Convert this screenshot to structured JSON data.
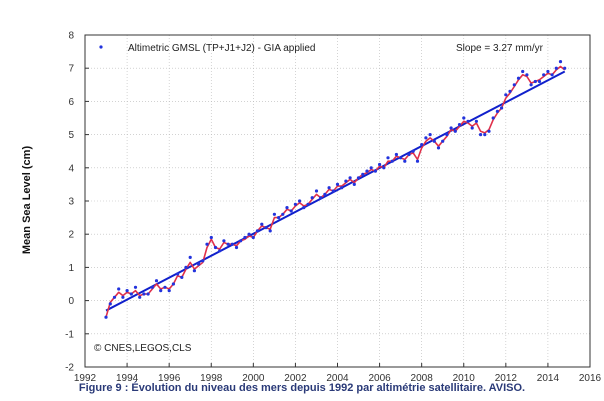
{
  "caption": "Figure 9 : Évolution du niveau des mers depuis 1992 par altimétrie satellitaire. AVISO.",
  "chart_data": {
    "type": "scatter",
    "title": "",
    "xlabel": "",
    "ylabel": "Mean Sea Level (cm)",
    "xlim": [
      1992,
      2016
    ],
    "ylim": [
      -2,
      8
    ],
    "xticks": [
      1992,
      1994,
      1996,
      1998,
      2000,
      2002,
      2004,
      2006,
      2008,
      2010,
      2012,
      2014,
      2016
    ],
    "yticks": [
      -2,
      -1,
      0,
      1,
      2,
      3,
      4,
      5,
      6,
      7,
      8
    ],
    "grid": true,
    "legend": {
      "position": "top-left",
      "label": "Altimetric GMSL (TP+J1+J2) - GIA applied"
    },
    "slope_label": "Slope = 3.27 mm/yr",
    "credit": "© CNES,LEGOS,CLS",
    "colors": {
      "points": "#2233dd",
      "smooth": "#e0304a",
      "trend": "#1020cc"
    },
    "series": [
      {
        "name": "Altimetric GMSL (TP+J1+J2) - GIA applied",
        "style": "points",
        "x": [
          1993.0,
          1993.2,
          1993.4,
          1993.6,
          1993.8,
          1994.0,
          1994.2,
          1994.4,
          1994.6,
          1994.8,
          1995.0,
          1995.2,
          1995.4,
          1995.6,
          1995.8,
          1996.0,
          1996.2,
          1996.4,
          1996.6,
          1996.8,
          1997.0,
          1997.2,
          1997.4,
          1997.6,
          1997.8,
          1998.0,
          1998.2,
          1998.4,
          1998.6,
          1998.8,
          1999.0,
          1999.2,
          1999.4,
          1999.6,
          1999.8,
          2000.0,
          2000.2,
          2000.4,
          2000.6,
          2000.8,
          2001.0,
          2001.2,
          2001.4,
          2001.6,
          2001.8,
          2002.0,
          2002.2,
          2002.4,
          2002.6,
          2002.8,
          2003.0,
          2003.2,
          2003.4,
          2003.6,
          2003.8,
          2004.0,
          2004.2,
          2004.4,
          2004.6,
          2004.8,
          2005.0,
          2005.2,
          2005.4,
          2005.6,
          2005.8,
          2006.0,
          2006.2,
          2006.4,
          2006.6,
          2006.8,
          2007.0,
          2007.2,
          2007.4,
          2007.6,
          2007.8,
          2008.0,
          2008.2,
          2008.4,
          2008.6,
          2008.8,
          2009.0,
          2009.2,
          2009.4,
          2009.6,
          2009.8,
          2010.0,
          2010.2,
          2010.4,
          2010.6,
          2010.8,
          2011.0,
          2011.2,
          2011.4,
          2011.6,
          2011.8,
          2012.0,
          2012.2,
          2012.4,
          2012.6,
          2012.8,
          2013.0,
          2013.2,
          2013.4,
          2013.6,
          2013.8,
          2014.0,
          2014.2,
          2014.4,
          2014.6,
          2014.8
        ],
        "values": [
          -0.5,
          -0.1,
          0.1,
          0.35,
          0.1,
          0.3,
          0.2,
          0.4,
          0.1,
          0.2,
          0.2,
          0.4,
          0.6,
          0.3,
          0.4,
          0.3,
          0.5,
          0.8,
          0.7,
          1.0,
          1.3,
          0.9,
          1.1,
          1.2,
          1.7,
          1.9,
          1.6,
          1.5,
          1.8,
          1.7,
          1.7,
          1.6,
          1.8,
          1.9,
          2.0,
          1.9,
          2.1,
          2.3,
          2.2,
          2.1,
          2.6,
          2.5,
          2.6,
          2.8,
          2.7,
          2.9,
          3.0,
          2.8,
          2.9,
          3.1,
          3.3,
          3.1,
          3.2,
          3.4,
          3.3,
          3.5,
          3.4,
          3.6,
          3.7,
          3.5,
          3.7,
          3.8,
          3.9,
          4.0,
          3.9,
          4.1,
          4.0,
          4.3,
          4.2,
          4.4,
          4.3,
          4.2,
          4.4,
          4.5,
          4.2,
          4.7,
          4.9,
          5.0,
          4.8,
          4.6,
          4.8,
          5.0,
          5.2,
          5.1,
          5.3,
          5.5,
          5.4,
          5.2,
          5.4,
          5.0,
          5.0,
          5.1,
          5.5,
          5.7,
          5.8,
          6.2,
          6.3,
          6.5,
          6.7,
          6.9,
          6.8,
          6.5,
          6.6,
          6.6,
          6.8,
          6.9,
          6.8,
          7.0,
          7.2,
          7.0
        ]
      },
      {
        "name": "",
        "style": "smoothed-line",
        "x": [
          1993.0,
          1993.2,
          1993.4,
          1993.6,
          1993.8,
          1994.0,
          1994.2,
          1994.4,
          1994.6,
          1994.8,
          1995.0,
          1995.2,
          1995.4,
          1995.6,
          1995.8,
          1996.0,
          1996.2,
          1996.4,
          1996.6,
          1996.8,
          1997.0,
          1997.2,
          1997.4,
          1997.6,
          1997.8,
          1998.0,
          1998.2,
          1998.4,
          1998.6,
          1998.8,
          1999.0,
          1999.2,
          1999.4,
          1999.6,
          1999.8,
          2000.0,
          2000.2,
          2000.4,
          2000.6,
          2000.8,
          2001.0,
          2001.2,
          2001.4,
          2001.6,
          2001.8,
          2002.0,
          2002.2,
          2002.4,
          2002.6,
          2002.8,
          2003.0,
          2003.2,
          2003.4,
          2003.6,
          2003.8,
          2004.0,
          2004.2,
          2004.4,
          2004.6,
          2004.8,
          2005.0,
          2005.2,
          2005.4,
          2005.6,
          2005.8,
          2006.0,
          2006.2,
          2006.4,
          2006.6,
          2006.8,
          2007.0,
          2007.2,
          2007.4,
          2007.6,
          2007.8,
          2008.0,
          2008.2,
          2008.4,
          2008.6,
          2008.8,
          2009.0,
          2009.2,
          2009.4,
          2009.6,
          2009.8,
          2010.0,
          2010.2,
          2010.4,
          2010.6,
          2010.8,
          2011.0,
          2011.2,
          2011.4,
          2011.6,
          2011.8,
          2012.0,
          2012.2,
          2012.4,
          2012.6,
          2012.8,
          2013.0,
          2013.2,
          2013.4,
          2013.6,
          2013.8,
          2014.0,
          2014.2,
          2014.4,
          2014.6,
          2014.8
        ],
        "values": [
          -0.5,
          -0.05,
          0.1,
          0.25,
          0.15,
          0.25,
          0.2,
          0.3,
          0.15,
          0.2,
          0.2,
          0.35,
          0.5,
          0.35,
          0.4,
          0.35,
          0.5,
          0.75,
          0.7,
          0.95,
          1.15,
          0.95,
          1.05,
          1.15,
          1.6,
          1.85,
          1.6,
          1.55,
          1.75,
          1.7,
          1.7,
          1.65,
          1.8,
          1.85,
          1.95,
          1.9,
          2.1,
          2.25,
          2.2,
          2.15,
          2.5,
          2.5,
          2.6,
          2.75,
          2.7,
          2.85,
          2.95,
          2.85,
          2.9,
          3.05,
          3.2,
          3.1,
          3.2,
          3.35,
          3.3,
          3.45,
          3.45,
          3.55,
          3.65,
          3.55,
          3.7,
          3.8,
          3.85,
          3.95,
          3.9,
          4.05,
          4.0,
          4.2,
          4.2,
          4.35,
          4.3,
          4.25,
          4.4,
          4.45,
          4.25,
          4.6,
          4.8,
          4.9,
          4.8,
          4.65,
          4.8,
          4.95,
          5.15,
          5.1,
          5.25,
          5.4,
          5.35,
          5.25,
          5.35,
          5.1,
          5.05,
          5.15,
          5.45,
          5.65,
          5.8,
          6.1,
          6.25,
          6.45,
          6.65,
          6.8,
          6.75,
          6.55,
          6.6,
          6.65,
          6.75,
          6.85,
          6.8,
          6.95,
          7.05,
          6.95
        ]
      },
      {
        "name": "",
        "style": "trend-line",
        "x": [
          1993.0,
          2014.8
        ],
        "values": [
          -0.3,
          6.9
        ]
      }
    ]
  }
}
